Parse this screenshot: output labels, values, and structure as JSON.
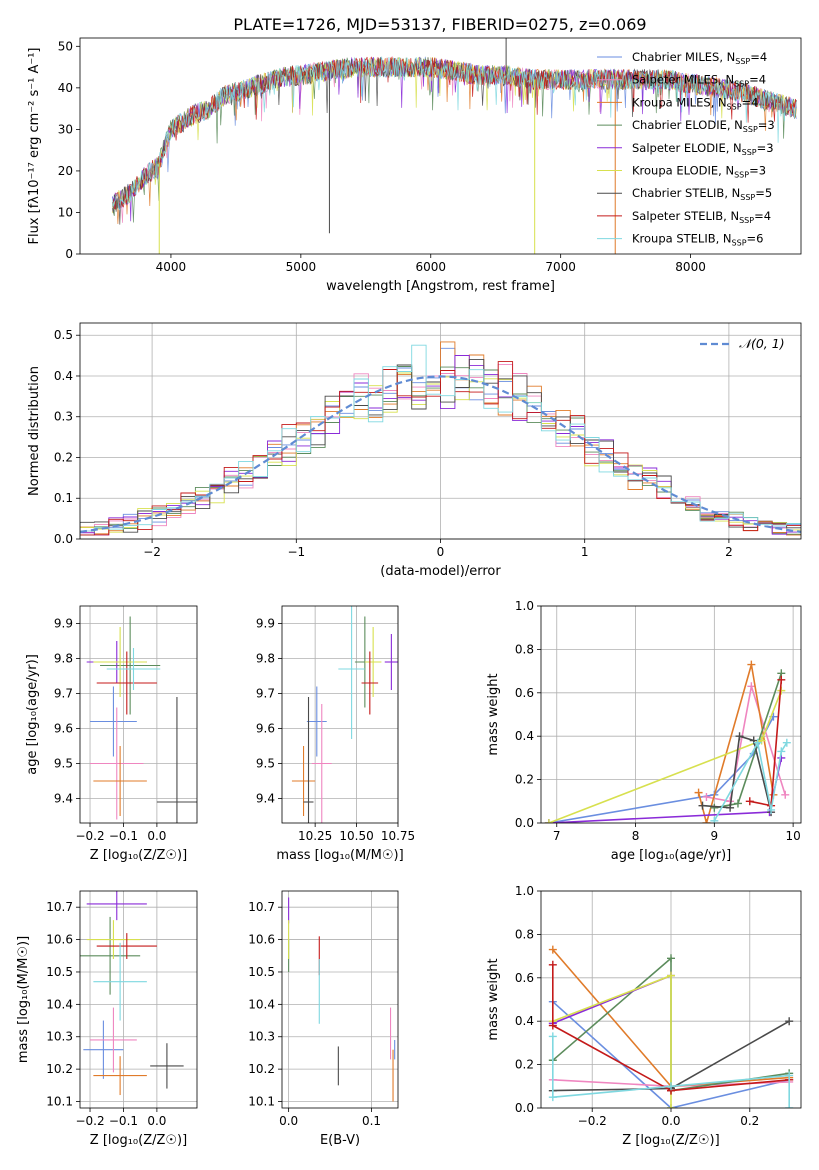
{
  "figure_title": "PLATE=1726, MJD=53137, FIBERID=0275, z=0.069",
  "colors": {
    "Chabrier MILES": "#6a8ee0",
    "Salpeter MILES": "#ef86c0",
    "Kroupa MILES": "#e07b2a",
    "Chabrier ELODIE": "#5c8c5c",
    "Salpeter ELODIE": "#8a2bd8",
    "Kroupa ELODIE": "#d7e04e",
    "Chabrier STELIB": "#4a4a4a",
    "Salpeter STELIB": "#c41a1a",
    "Kroupa STELIB": "#7fd8e0",
    "gauss": "#5f8bd3"
  },
  "chart_data": [
    {
      "id": "spectrum",
      "type": "line",
      "title": "PLATE=1726, MJD=53137, FIBERID=0275, z=0.069",
      "xlabel": "wavelength [Angstrom, rest frame]",
      "ylabel": "Flux [fλ10⁻¹⁷ erg cm⁻² s⁻¹ A⁻¹]",
      "xlim": [
        3300,
        8850
      ],
      "ylim": [
        0,
        52
      ],
      "xticks": [
        4000,
        5000,
        6000,
        7000,
        8000
      ],
      "yticks": [
        0,
        10,
        20,
        30,
        40,
        50
      ],
      "legend_position": "top-right",
      "continuum": {
        "x": [
          3550,
          3700,
          3800,
          3900,
          3950,
          4000,
          4100,
          4200,
          4300,
          4400,
          4500,
          4600,
          4700,
          4800,
          4900,
          5000,
          5200,
          5400,
          5600,
          5800,
          6000,
          6200,
          6400,
          6600,
          6800,
          7000,
          7200,
          7400,
          7600,
          7800,
          8000,
          8200,
          8400,
          8500,
          8600,
          8800
        ],
        "y": [
          12,
          15,
          19,
          21,
          26,
          30,
          32,
          34,
          35,
          38,
          39,
          40,
          41,
          42,
          43,
          43,
          44,
          45,
          45,
          45,
          45,
          44,
          43,
          43,
          42,
          42,
          42,
          42,
          42,
          42,
          41,
          40,
          39,
          38,
          37,
          35
        ]
      },
      "spikes": [
        {
          "x": 3910,
          "y": 0
        },
        {
          "x": 5220,
          "y": 5
        },
        {
          "x": 6580,
          "y": 52
        },
        {
          "x": 6800,
          "y": 0
        },
        {
          "x": 7420,
          "y": 0
        }
      ],
      "series": [
        {
          "name": "Chabrier MILES, N_SSP=4",
          "label_main": "Chabrier MILES, N",
          "label_sub": "SSP",
          "label_tail": "=4"
        },
        {
          "name": "Salpeter MILES, N_SSP=4",
          "label_main": "Salpeter MILES, N",
          "label_sub": "SSP",
          "label_tail": "=4"
        },
        {
          "name": "Kroupa MILES, N_SSP=4",
          "label_main": "Kroupa MILES, N",
          "label_sub": "SSP",
          "label_tail": "=4"
        },
        {
          "name": "Chabrier ELODIE, N_SSP=3",
          "label_main": "Chabrier ELODIE, N",
          "label_sub": "SSP",
          "label_tail": "=3"
        },
        {
          "name": "Salpeter ELODIE, N_SSP=3",
          "label_main": "Salpeter ELODIE, N",
          "label_sub": "SSP",
          "label_tail": "=3"
        },
        {
          "name": "Kroupa ELODIE, N_SSP=3",
          "label_main": "Kroupa ELODIE, N",
          "label_sub": "SSP",
          "label_tail": "=3"
        },
        {
          "name": "Chabrier STELIB, N_SSP=5",
          "label_main": "Chabrier STELIB, N",
          "label_sub": "SSP",
          "label_tail": "=5"
        },
        {
          "name": "Salpeter STELIB, N_SSP=4",
          "label_main": "Salpeter STELIB, N",
          "label_sub": "SSP",
          "label_tail": "=4"
        },
        {
          "name": "Kroupa STELIB, N_SSP=6",
          "label_main": "Kroupa STELIB, N",
          "label_sub": "SSP",
          "label_tail": "=6"
        }
      ]
    },
    {
      "id": "residuals",
      "type": "histogram",
      "xlabel": "(data-model)/error",
      "ylabel": "Normed distribution",
      "xlim": [
        -2.5,
        2.5
      ],
      "ylim": [
        0,
        0.53
      ],
      "xticks": [
        -2,
        -1,
        0,
        1,
        2
      ],
      "yticks": [
        0.0,
        0.1,
        0.2,
        0.3,
        0.4,
        0.5
      ],
      "grid": true,
      "bin_width": 0.1,
      "legend_label": "𝒩(0, 1)",
      "legend_position": "top-right",
      "gaussian": {
        "mean": 0,
        "sigma": 1
      }
    },
    {
      "id": "age_vs_Z",
      "type": "errorbar",
      "xlabel": "Z [log₁₀(Z/Z☉)]",
      "ylabel": "age  [log₁₀(age/yr)]",
      "xlim": [
        -0.23,
        0.12
      ],
      "ylim": [
        9.33,
        9.95
      ],
      "xticks": [
        -0.2,
        -0.1,
        0.0
      ],
      "xtick_labels": [
        "−0.2",
        "−0.1",
        "0.0"
      ],
      "yticks": [
        9.4,
        9.5,
        9.6,
        9.7,
        9.8,
        9.9
      ],
      "grid": true,
      "points": [
        {
          "series": "Chabrier MILES",
          "x": -0.13,
          "xerr": 0.07,
          "y": 9.62,
          "yerr": 0.1
        },
        {
          "series": "Salpeter MILES",
          "x": -0.12,
          "xerr": 0.08,
          "y": 9.5,
          "yerr": 0.16
        },
        {
          "series": "Kroupa MILES",
          "x": -0.11,
          "xerr": 0.08,
          "y": 9.45,
          "yerr": 0.1
        },
        {
          "series": "Chabrier ELODIE",
          "x": -0.08,
          "xerr": 0.09,
          "y": 9.78,
          "yerr": 0.14
        },
        {
          "series": "Salpeter ELODIE",
          "x": -0.12,
          "xerr": 0.09,
          "y": 9.79,
          "yerr": 0.06
        },
        {
          "series": "Kroupa ELODIE",
          "x": -0.11,
          "xerr": 0.08,
          "y": 9.79,
          "yerr": 0.1
        },
        {
          "series": "Chabrier STELIB",
          "x": 0.06,
          "xerr": 0.06,
          "y": 9.39,
          "yerr": 0.3
        },
        {
          "series": "Salpeter STELIB",
          "x": -0.09,
          "xerr": 0.09,
          "y": 9.73,
          "yerr": 0.09
        },
        {
          "series": "Kroupa STELIB",
          "x": -0.07,
          "xerr": 0.08,
          "y": 9.77,
          "yerr": 0.06
        }
      ]
    },
    {
      "id": "age_vs_mass",
      "type": "errorbar",
      "xlabel": "mass [log₁₀(M/M☉)]",
      "ylabel": "",
      "xlim": [
        10.05,
        10.75
      ],
      "ylim": [
        9.33,
        9.95
      ],
      "xticks": [
        10.25,
        10.5,
        10.75
      ],
      "xtick_labels": [
        "10.25",
        "10.50",
        "10.75"
      ],
      "yticks": [
        9.4,
        9.5,
        9.6,
        9.7,
        9.8,
        9.9
      ],
      "grid": true,
      "points": [
        {
          "series": "Chabrier MILES",
          "x": 10.26,
          "xerr": 0.06,
          "y": 9.62,
          "yerr": 0.1
        },
        {
          "series": "Salpeter MILES",
          "x": 10.29,
          "xerr": 0.06,
          "y": 9.5,
          "yerr": 0.17
        },
        {
          "series": "Kroupa MILES",
          "x": 10.18,
          "xerr": 0.07,
          "y": 9.45,
          "yerr": 0.1
        },
        {
          "series": "Chabrier ELODIE",
          "x": 10.55,
          "xerr": 0.06,
          "y": 9.79,
          "yerr": 0.13
        },
        {
          "series": "Salpeter ELODIE",
          "x": 10.71,
          "xerr": 0.04,
          "y": 9.79,
          "yerr": 0.08
        },
        {
          "series": "Kroupa ELODIE",
          "x": 10.6,
          "xerr": 0.05,
          "y": 9.79,
          "yerr": 0.1
        },
        {
          "series": "Chabrier STELIB",
          "x": 10.21,
          "xerr": 0.03,
          "y": 9.39,
          "yerr": 0.3
        },
        {
          "series": "Salpeter STELIB",
          "x": 10.58,
          "xerr": 0.05,
          "y": 9.73,
          "yerr": 0.09
        },
        {
          "series": "Kroupa STELIB",
          "x": 10.47,
          "xerr": 0.08,
          "y": 9.77,
          "yerr": 0.2
        }
      ]
    },
    {
      "id": "weight_vs_age",
      "type": "line",
      "xlabel": "age  [log₁₀(age/yr)]",
      "ylabel": "mass weight",
      "xlim": [
        6.8,
        10.1
      ],
      "ylim": [
        0,
        1
      ],
      "xticks": [
        7,
        8,
        9,
        10
      ],
      "yticks": [
        0.0,
        0.2,
        0.4,
        0.6,
        0.8,
        1.0
      ],
      "grid": true,
      "series": [
        {
          "name": "Chabrier MILES",
          "x": [
            6.9,
            9.0,
            9.5,
            9.75
          ],
          "y": [
            0.0,
            0.13,
            0.32,
            0.49
          ]
        },
        {
          "name": "Salpeter MILES",
          "x": [
            8.9,
            9.2,
            9.47,
            9.9
          ],
          "y": [
            0.12,
            0.1,
            0.63,
            0.13
          ]
        },
        {
          "name": "Kroupa MILES",
          "x": [
            8.8,
            8.9,
            9.47,
            9.75
          ],
          "y": [
            0.14,
            0.0,
            0.73,
            0.13
          ]
        },
        {
          "name": "Chabrier ELODIE",
          "x": [
            9.0,
            9.3,
            9.85
          ],
          "y": [
            0.07,
            0.09,
            0.69
          ]
        },
        {
          "name": "Salpeter ELODIE",
          "x": [
            6.9,
            9.7,
            9.85
          ],
          "y": [
            0.0,
            0.05,
            0.3
          ]
        },
        {
          "name": "Kroupa ELODIE",
          "x": [
            6.9,
            9.6,
            9.85
          ],
          "y": [
            0.0,
            0.38,
            0.61
          ]
        },
        {
          "name": "Chabrier STELIB",
          "x": [
            8.85,
            9.2,
            9.32,
            9.5,
            9.72
          ],
          "y": [
            0.08,
            0.07,
            0.4,
            0.38,
            0.05
          ]
        },
        {
          "name": "Salpeter STELIB",
          "x": [
            9.45,
            9.72,
            9.85
          ],
          "y": [
            0.1,
            0.08,
            0.66
          ]
        },
        {
          "name": "Kroupa STELIB",
          "x": [
            9.0,
            9.55,
            9.72,
            9.85,
            9.92
          ],
          "y": [
            0.01,
            0.37,
            0.06,
            0.33,
            0.37
          ]
        }
      ]
    },
    {
      "id": "mass_vs_Z",
      "type": "errorbar",
      "xlabel": "Z [log₁₀(Z/Z☉)]",
      "ylabel": "mass [log₁₀(M/M☉)]",
      "xlim": [
        -0.23,
        0.12
      ],
      "ylim": [
        10.08,
        10.75
      ],
      "xticks": [
        -0.2,
        -0.1,
        0.0
      ],
      "xtick_labels": [
        "−0.2",
        "−0.1",
        "0.0"
      ],
      "yticks": [
        10.1,
        10.2,
        10.3,
        10.4,
        10.5,
        10.6,
        10.7
      ],
      "grid": true,
      "points": [
        {
          "series": "Chabrier MILES",
          "x": -0.16,
          "xerr": 0.06,
          "y": 10.26,
          "yerr": 0.09
        },
        {
          "series": "Salpeter MILES",
          "x": -0.13,
          "xerr": 0.07,
          "y": 10.29,
          "yerr": 0.1
        },
        {
          "series": "Kroupa MILES",
          "x": -0.11,
          "xerr": 0.08,
          "y": 10.18,
          "yerr": 0.06
        },
        {
          "series": "Chabrier ELODIE",
          "x": -0.14,
          "xerr": 0.09,
          "y": 10.55,
          "yerr": 0.12
        },
        {
          "series": "Salpeter ELODIE",
          "x": -0.12,
          "xerr": 0.09,
          "y": 10.71,
          "yerr": 0.05
        },
        {
          "series": "Kroupa ELODIE",
          "x": -0.13,
          "xerr": 0.08,
          "y": 10.6,
          "yerr": 0.06
        },
        {
          "series": "Chabrier STELIB",
          "x": 0.03,
          "xerr": 0.05,
          "y": 10.21,
          "yerr": 0.07
        },
        {
          "series": "Salpeter STELIB",
          "x": -0.09,
          "xerr": 0.09,
          "y": 10.58,
          "yerr": 0.04
        },
        {
          "series": "Kroupa STELIB",
          "x": -0.11,
          "xerr": 0.08,
          "y": 10.47,
          "yerr": 0.12
        }
      ]
    },
    {
      "id": "mass_vs_ebv",
      "type": "errorbar",
      "xlabel": "E(B-V)",
      "ylabel": "",
      "xlim": [
        -0.008,
        0.132
      ],
      "ylim": [
        10.08,
        10.75
      ],
      "xticks": [
        0.0,
        0.1
      ],
      "xtick_labels": [
        "0.0",
        "0.1"
      ],
      "yticks": [
        10.1,
        10.2,
        10.3,
        10.4,
        10.5,
        10.6,
        10.7
      ],
      "grid": true,
      "points": [
        {
          "series": "Chabrier MILES",
          "x": 0.128,
          "xerr": 0.0,
          "y": 10.26,
          "yerr": 0.03
        },
        {
          "series": "Salpeter MILES",
          "x": 0.123,
          "xerr": 0.0,
          "y": 10.31,
          "yerr": 0.08
        },
        {
          "series": "Kroupa MILES",
          "x": 0.126,
          "xerr": 0.0,
          "y": 10.18,
          "yerr": 0.08
        },
        {
          "series": "Chabrier ELODIE",
          "x": 0.0,
          "xerr": 0.0,
          "y": 10.55,
          "yerr": 0.05
        },
        {
          "series": "Salpeter ELODIE",
          "x": 0.0,
          "xerr": 0.0,
          "y": 10.69,
          "yerr": 0.04
        },
        {
          "series": "Kroupa ELODIE",
          "x": 0.0,
          "xerr": 0.0,
          "y": 10.6,
          "yerr": 0.06
        },
        {
          "series": "Chabrier STELIB",
          "x": 0.06,
          "xerr": 0.0,
          "y": 10.21,
          "yerr": 0.06
        },
        {
          "series": "Salpeter STELIB",
          "x": 0.037,
          "xerr": 0.0,
          "y": 10.55,
          "yerr": 0.06
        },
        {
          "series": "Kroupa STELIB",
          "x": 0.037,
          "xerr": 0.0,
          "y": 10.44,
          "yerr": 0.1
        }
      ]
    },
    {
      "id": "weight_vs_Z",
      "type": "line",
      "xlabel": "Z [log₁₀(Z/Z☉)]",
      "ylabel": "mass weight",
      "xlim": [
        -0.33,
        0.33
      ],
      "ylim": [
        0,
        1
      ],
      "xticks": [
        -0.2,
        0.0,
        0.2
      ],
      "xtick_labels": [
        "−0.2",
        "0.0",
        "0.2"
      ],
      "yticks": [
        0.0,
        0.2,
        0.4,
        0.6,
        0.8,
        1.0
      ],
      "grid": true,
      "series": [
        {
          "name": "Chabrier MILES",
          "x": [
            -0.3,
            0.0,
            0.3
          ],
          "y": [
            0.49,
            0.0,
            0.13
          ]
        },
        {
          "name": "Salpeter MILES",
          "x": [
            -0.3,
            0.0,
            0.3
          ],
          "y": [
            0.13,
            0.1,
            0.12
          ]
        },
        {
          "name": "Kroupa MILES",
          "x": [
            -0.3,
            0.0,
            0.3
          ],
          "y": [
            0.73,
            0.1,
            0.14
          ]
        },
        {
          "name": "Chabrier ELODIE",
          "x": [
            -0.3,
            0.0,
            0.0,
            0.3
          ],
          "y": [
            0.22,
            0.69,
            0.08,
            0.16
          ]
        },
        {
          "name": "Salpeter ELODIE",
          "x": [
            -0.3,
            0.0
          ],
          "y": [
            0.39,
            0.61
          ]
        },
        {
          "name": "Kroupa ELODIE",
          "x": [
            -0.3,
            0.0,
            0.0
          ],
          "y": [
            0.4,
            0.61,
            0.0
          ]
        },
        {
          "name": "Chabrier STELIB",
          "x": [
            -0.3,
            0.0,
            0.3
          ],
          "y": [
            0.08,
            0.09,
            0.4
          ]
        },
        {
          "name": "Salpeter STELIB",
          "x": [
            -0.3,
            -0.3,
            0.0,
            0.3
          ],
          "y": [
            0.66,
            0.38,
            0.08,
            0.13
          ]
        },
        {
          "name": "Kroupa STELIB",
          "x": [
            -0.3,
            -0.3,
            0.0,
            0.3,
            0.3
          ],
          "y": [
            0.33,
            0.05,
            0.1,
            0.15,
            0.0
          ]
        }
      ]
    }
  ]
}
